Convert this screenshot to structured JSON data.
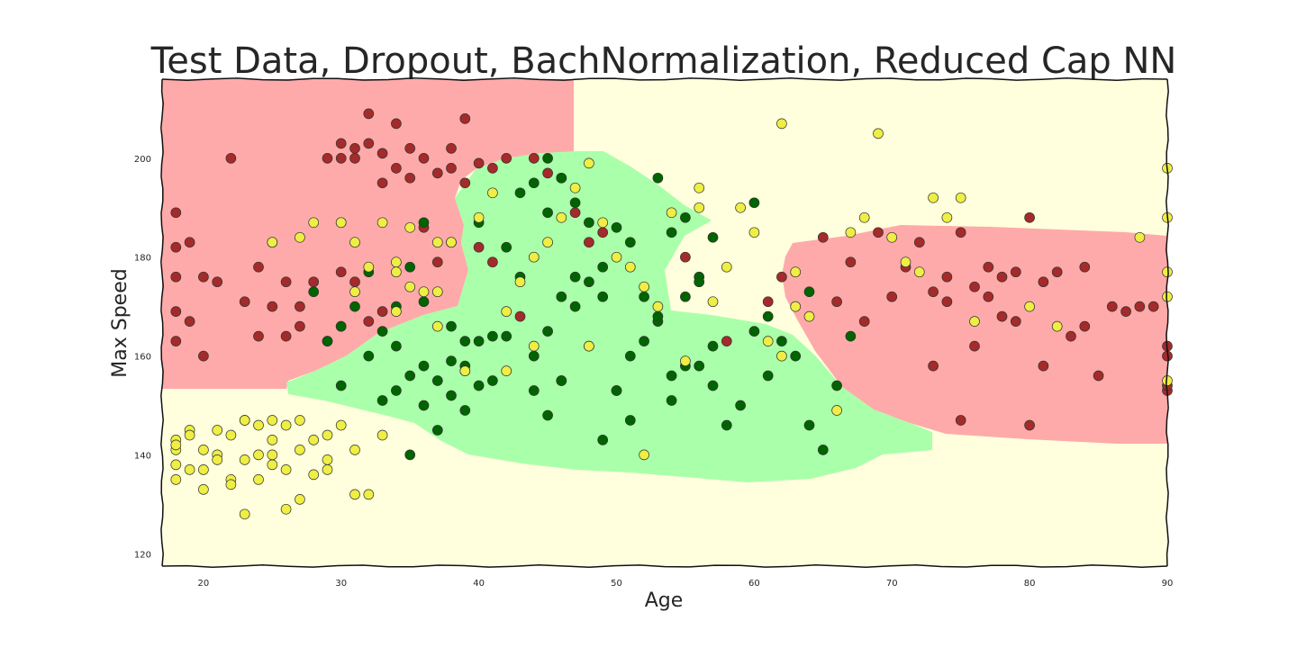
{
  "chart_data": {
    "type": "scatter",
    "title": "Test Data, Dropout, BachNormalization, Reduced Cap NN",
    "xlabel": "Age",
    "ylabel": "Max Speed",
    "xlim": [
      17,
      90
    ],
    "ylim": [
      117.5,
      216
    ],
    "xticks": [
      20,
      30,
      40,
      50,
      60,
      70,
      80,
      90
    ],
    "yticks": [
      120,
      140,
      160,
      180,
      200
    ],
    "grid": false,
    "background": "decision regions (red / green / yellow)",
    "region_colors": {
      "red": "#ffaaaa",
      "green": "#aaffaa",
      "yellow": "#ffffdd"
    },
    "point_colors": {
      "red": "#a52a2a",
      "green": "#006400",
      "yellow": "#eeee44"
    },
    "series": [
      {
        "name": "red",
        "x": [
          18,
          18,
          18,
          18,
          18,
          19,
          19,
          20,
          20,
          21,
          22,
          23,
          24,
          24,
          25,
          26,
          26,
          27,
          27,
          28,
          29,
          29,
          30,
          30,
          30,
          30,
          31,
          31,
          31,
          32,
          32,
          32,
          33,
          33,
          33,
          34,
          34,
          35,
          35,
          36,
          36,
          37,
          37,
          38,
          38,
          39,
          39,
          40,
          40,
          41,
          41,
          42,
          43,
          44,
          45,
          46,
          47,
          48,
          49,
          55,
          58,
          61,
          62,
          65,
          66,
          67,
          68,
          69,
          70,
          71,
          72,
          73,
          73,
          74,
          74,
          75,
          75,
          76,
          76,
          77,
          77,
          78,
          78,
          79,
          79,
          80,
          80,
          81,
          81,
          82,
          83,
          84,
          84,
          85,
          86,
          87,
          88,
          89,
          90,
          90,
          90,
          90
        ],
        "y": [
          189,
          182,
          176,
          169,
          163,
          183,
          167,
          176,
          160,
          175,
          200,
          171,
          178,
          164,
          170,
          175,
          164,
          170,
          166,
          175,
          200,
          163,
          203,
          200,
          177,
          166,
          202,
          200,
          175,
          209,
          203,
          167,
          201,
          195,
          169,
          207,
          198,
          202,
          196,
          200,
          186,
          197,
          179,
          202,
          198,
          208,
          195,
          199,
          182,
          198,
          179,
          200,
          168,
          200,
          197,
          196,
          189,
          183,
          185,
          180,
          163,
          171,
          176,
          184,
          171,
          179,
          167,
          185,
          172,
          178,
          183,
          173,
          158,
          176,
          171,
          185,
          147,
          174,
          162,
          178,
          172,
          176,
          168,
          177,
          167,
          188,
          146,
          175,
          158,
          177,
          164,
          178,
          166,
          156,
          170,
          169,
          170,
          170,
          162,
          153,
          154,
          160
        ]
      },
      {
        "name": "green",
        "x": [
          28,
          29,
          30,
          30,
          31,
          32,
          32,
          33,
          33,
          34,
          34,
          35,
          35,
          35,
          36,
          36,
          37,
          37,
          38,
          38,
          39,
          39,
          40,
          40,
          41,
          42,
          42,
          43,
          43,
          44,
          44,
          45,
          45,
          46,
          46,
          47,
          47,
          48,
          48,
          49,
          49,
          50,
          50,
          51,
          51,
          52,
          52,
          53,
          53,
          54,
          54,
          55,
          55,
          56,
          56,
          57,
          58,
          59,
          60,
          60,
          61,
          61,
          62,
          63,
          64,
          64,
          65,
          66,
          67,
          34,
          36,
          38,
          39,
          40,
          41,
          44,
          45,
          46,
          47,
          48,
          49,
          50,
          51,
          53,
          54,
          56,
          57,
          55,
          57,
          36,
          45,
          46,
          38
        ],
        "y": [
          173,
          163,
          166,
          154,
          170,
          177,
          160,
          165,
          151,
          170,
          153,
          178,
          156,
          140,
          171,
          150,
          155,
          145,
          166,
          152,
          158,
          149,
          187,
          163,
          164,
          182,
          164,
          193,
          176,
          195,
          153,
          189,
          165,
          196,
          155,
          191,
          170,
          187,
          162,
          178,
          143,
          186,
          153,
          183,
          147,
          172,
          163,
          196,
          167,
          185,
          156,
          188,
          172,
          176,
          158,
          184,
          146,
          150,
          165,
          191,
          156,
          168,
          163,
          160,
          146,
          173,
          141,
          154,
          164,
          162,
          158,
          159,
          163,
          154,
          155,
          160,
          148,
          155,
          176,
          175,
          172,
          153,
          160,
          168,
          151,
          175,
          162,
          158,
          154,
          187,
          200,
          172,
          183
        ]
      },
      {
        "name": "yellow",
        "x": [
          18,
          18,
          18,
          18,
          18,
          19,
          19,
          20,
          20,
          20,
          21,
          21,
          22,
          22,
          23,
          23,
          23,
          24,
          24,
          24,
          25,
          25,
          25,
          26,
          26,
          26,
          27,
          27,
          28,
          28,
          29,
          29,
          30,
          31,
          31,
          32,
          33,
          34,
          34,
          35,
          36,
          37,
          37,
          38,
          39,
          40,
          41,
          42,
          43,
          44,
          45,
          46,
          47,
          48,
          49,
          50,
          51,
          52,
          53,
          54,
          55,
          56,
          56,
          57,
          58,
          59,
          60,
          61,
          62,
          62,
          63,
          63,
          64,
          66,
          67,
          68,
          69,
          70,
          71,
          72,
          73,
          74,
          75,
          76,
          80,
          82,
          88,
          90,
          90,
          90,
          90,
          90,
          22,
          25,
          27,
          29,
          31,
          21,
          19,
          23,
          25,
          27,
          30,
          32,
          30,
          31,
          33,
          34,
          25,
          28,
          35,
          37,
          39,
          42,
          44,
          48,
          52
        ],
        "y": [
          143,
          141,
          138,
          135,
          142,
          145,
          137,
          141,
          133,
          137,
          145,
          140,
          144,
          135,
          147,
          139,
          128,
          146,
          140,
          135,
          147,
          143,
          138,
          146,
          137,
          129,
          147,
          141,
          143,
          136,
          144,
          139,
          146,
          141,
          132,
          132,
          144,
          169,
          177,
          186,
          173,
          183,
          166,
          183,
          157,
          188,
          193,
          169,
          175,
          180,
          183,
          188,
          194,
          199,
          187,
          180,
          178,
          174,
          170,
          189,
          159,
          190,
          194,
          171,
          178,
          190,
          185,
          163,
          160,
          207,
          170,
          177,
          168,
          149,
          185,
          188,
          205,
          184,
          179,
          177,
          192,
          188,
          192,
          167,
          170,
          166,
          184,
          198,
          188,
          177,
          172,
          155,
          134,
          140,
          131,
          137,
          183,
          139,
          144,
          147,
          183,
          184,
          187,
          178,
          187,
          173,
          187,
          179,
          183,
          187,
          174,
          173,
          157,
          157,
          162,
          162,
          140
        ]
      }
    ]
  }
}
